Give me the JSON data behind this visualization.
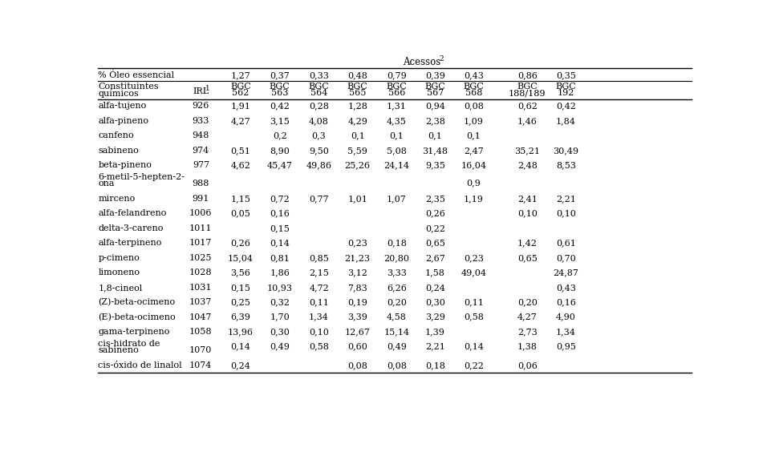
{
  "header_pct_label": "% Óleo essencial",
  "header_pct_values": [
    "1,27",
    "0,37",
    "0,33",
    "0,48",
    "0,79",
    "0,39",
    "0,43",
    "0,86",
    "0,35"
  ],
  "bgc_nums": [
    "562",
    "563",
    "564",
    "565",
    "566",
    "567",
    "568",
    "188/189",
    "192"
  ],
  "rows": [
    [
      "alfa-tujeno",
      "926",
      "1,91",
      "0,42",
      "0,28",
      "1,28",
      "1,31",
      "0,94",
      "0,08",
      "0,62",
      "0,42"
    ],
    [
      "alfa-pineno",
      "933",
      "4,27",
      "3,15",
      "4,08",
      "4,29",
      "4,35",
      "2,38",
      "1,09",
      "1,46",
      "1,84"
    ],
    [
      "canfeno",
      "948",
      "",
      "0,2",
      "0,3",
      "0,1",
      "0,1",
      "0,1",
      "0,1",
      "",
      ""
    ],
    [
      "sabineno",
      "974",
      "0,51",
      "8,90",
      "9,50",
      "5,59",
      "5,08",
      "31,48",
      "2,47",
      "35,21",
      "30,49"
    ],
    [
      "beta-pineno",
      "977",
      "4,62",
      "45,47",
      "49,86",
      "25,26",
      "24,14",
      "9,35",
      "16,04",
      "2,48",
      "8,53"
    ],
    [
      "6-metil-5-hepten-2-|ona",
      "988",
      "",
      "",
      "",
      "",
      "",
      "",
      "0,9",
      "",
      ""
    ],
    [
      "mirceno",
      "991",
      "1,15",
      "0,72",
      "0,77",
      "1,01",
      "1,07",
      "2,35",
      "1,19",
      "2,41",
      "2,21"
    ],
    [
      "alfa-felandreno",
      "1006",
      "0,05",
      "0,16",
      "",
      "",
      "",
      "0,26",
      "",
      "0,10",
      "0,10"
    ],
    [
      "delta-3-careno",
      "1011",
      "",
      "0,15",
      "",
      "",
      "",
      "0,22",
      "",
      "",
      ""
    ],
    [
      "alfa-terpineno",
      "1017",
      "0,26",
      "0,14",
      "",
      "0,23",
      "0,18",
      "0,65",
      "",
      "1,42",
      "0,61"
    ],
    [
      "p-cimeno",
      "1025",
      "15,04",
      "0,81",
      "0,85",
      "21,23",
      "20,80",
      "2,67",
      "0,23",
      "0,65",
      "0,70"
    ],
    [
      "limoneno",
      "1028",
      "3,56",
      "1,86",
      "2,15",
      "3,12",
      "3,33",
      "1,58",
      "49,04",
      "",
      "24,87"
    ],
    [
      "1,8-cineol",
      "1031",
      "0,15",
      "10,93",
      "4,72",
      "7,83",
      "6,26",
      "0,24",
      "",
      "",
      "0,43"
    ],
    [
      "(Z)-beta-ocimeno",
      "1037",
      "0,25",
      "0,32",
      "0,11",
      "0,19",
      "0,20",
      "0,30",
      "0,11",
      "0,20",
      "0,16"
    ],
    [
      "(E)-beta-ocimeno",
      "1047",
      "6,39",
      "1,70",
      "1,34",
      "3,39",
      "4,58",
      "3,29",
      "0,58",
      "4,27",
      "4,90"
    ],
    [
      "gama-terpineno",
      "1058",
      "13,96",
      "0,30",
      "0,10",
      "12,67",
      "15,14",
      "1,39",
      "",
      "2,73",
      "1,34"
    ],
    [
      "cis-hidrato de|sabineno",
      "1070",
      "0,14",
      "0,49",
      "0,58",
      "0,60",
      "0,49",
      "2,21",
      "0,14",
      "1,38",
      "0,95"
    ],
    [
      "cis-óxido de linalol",
      "1074",
      "0,24",
      "",
      "",
      "0,08",
      "0,08",
      "0,18",
      "0,22",
      "0,06",
      ""
    ]
  ],
  "bg_color": "#ffffff",
  "text_color": "#000000",
  "font_size": 8.0,
  "title_font_size": 8.5
}
